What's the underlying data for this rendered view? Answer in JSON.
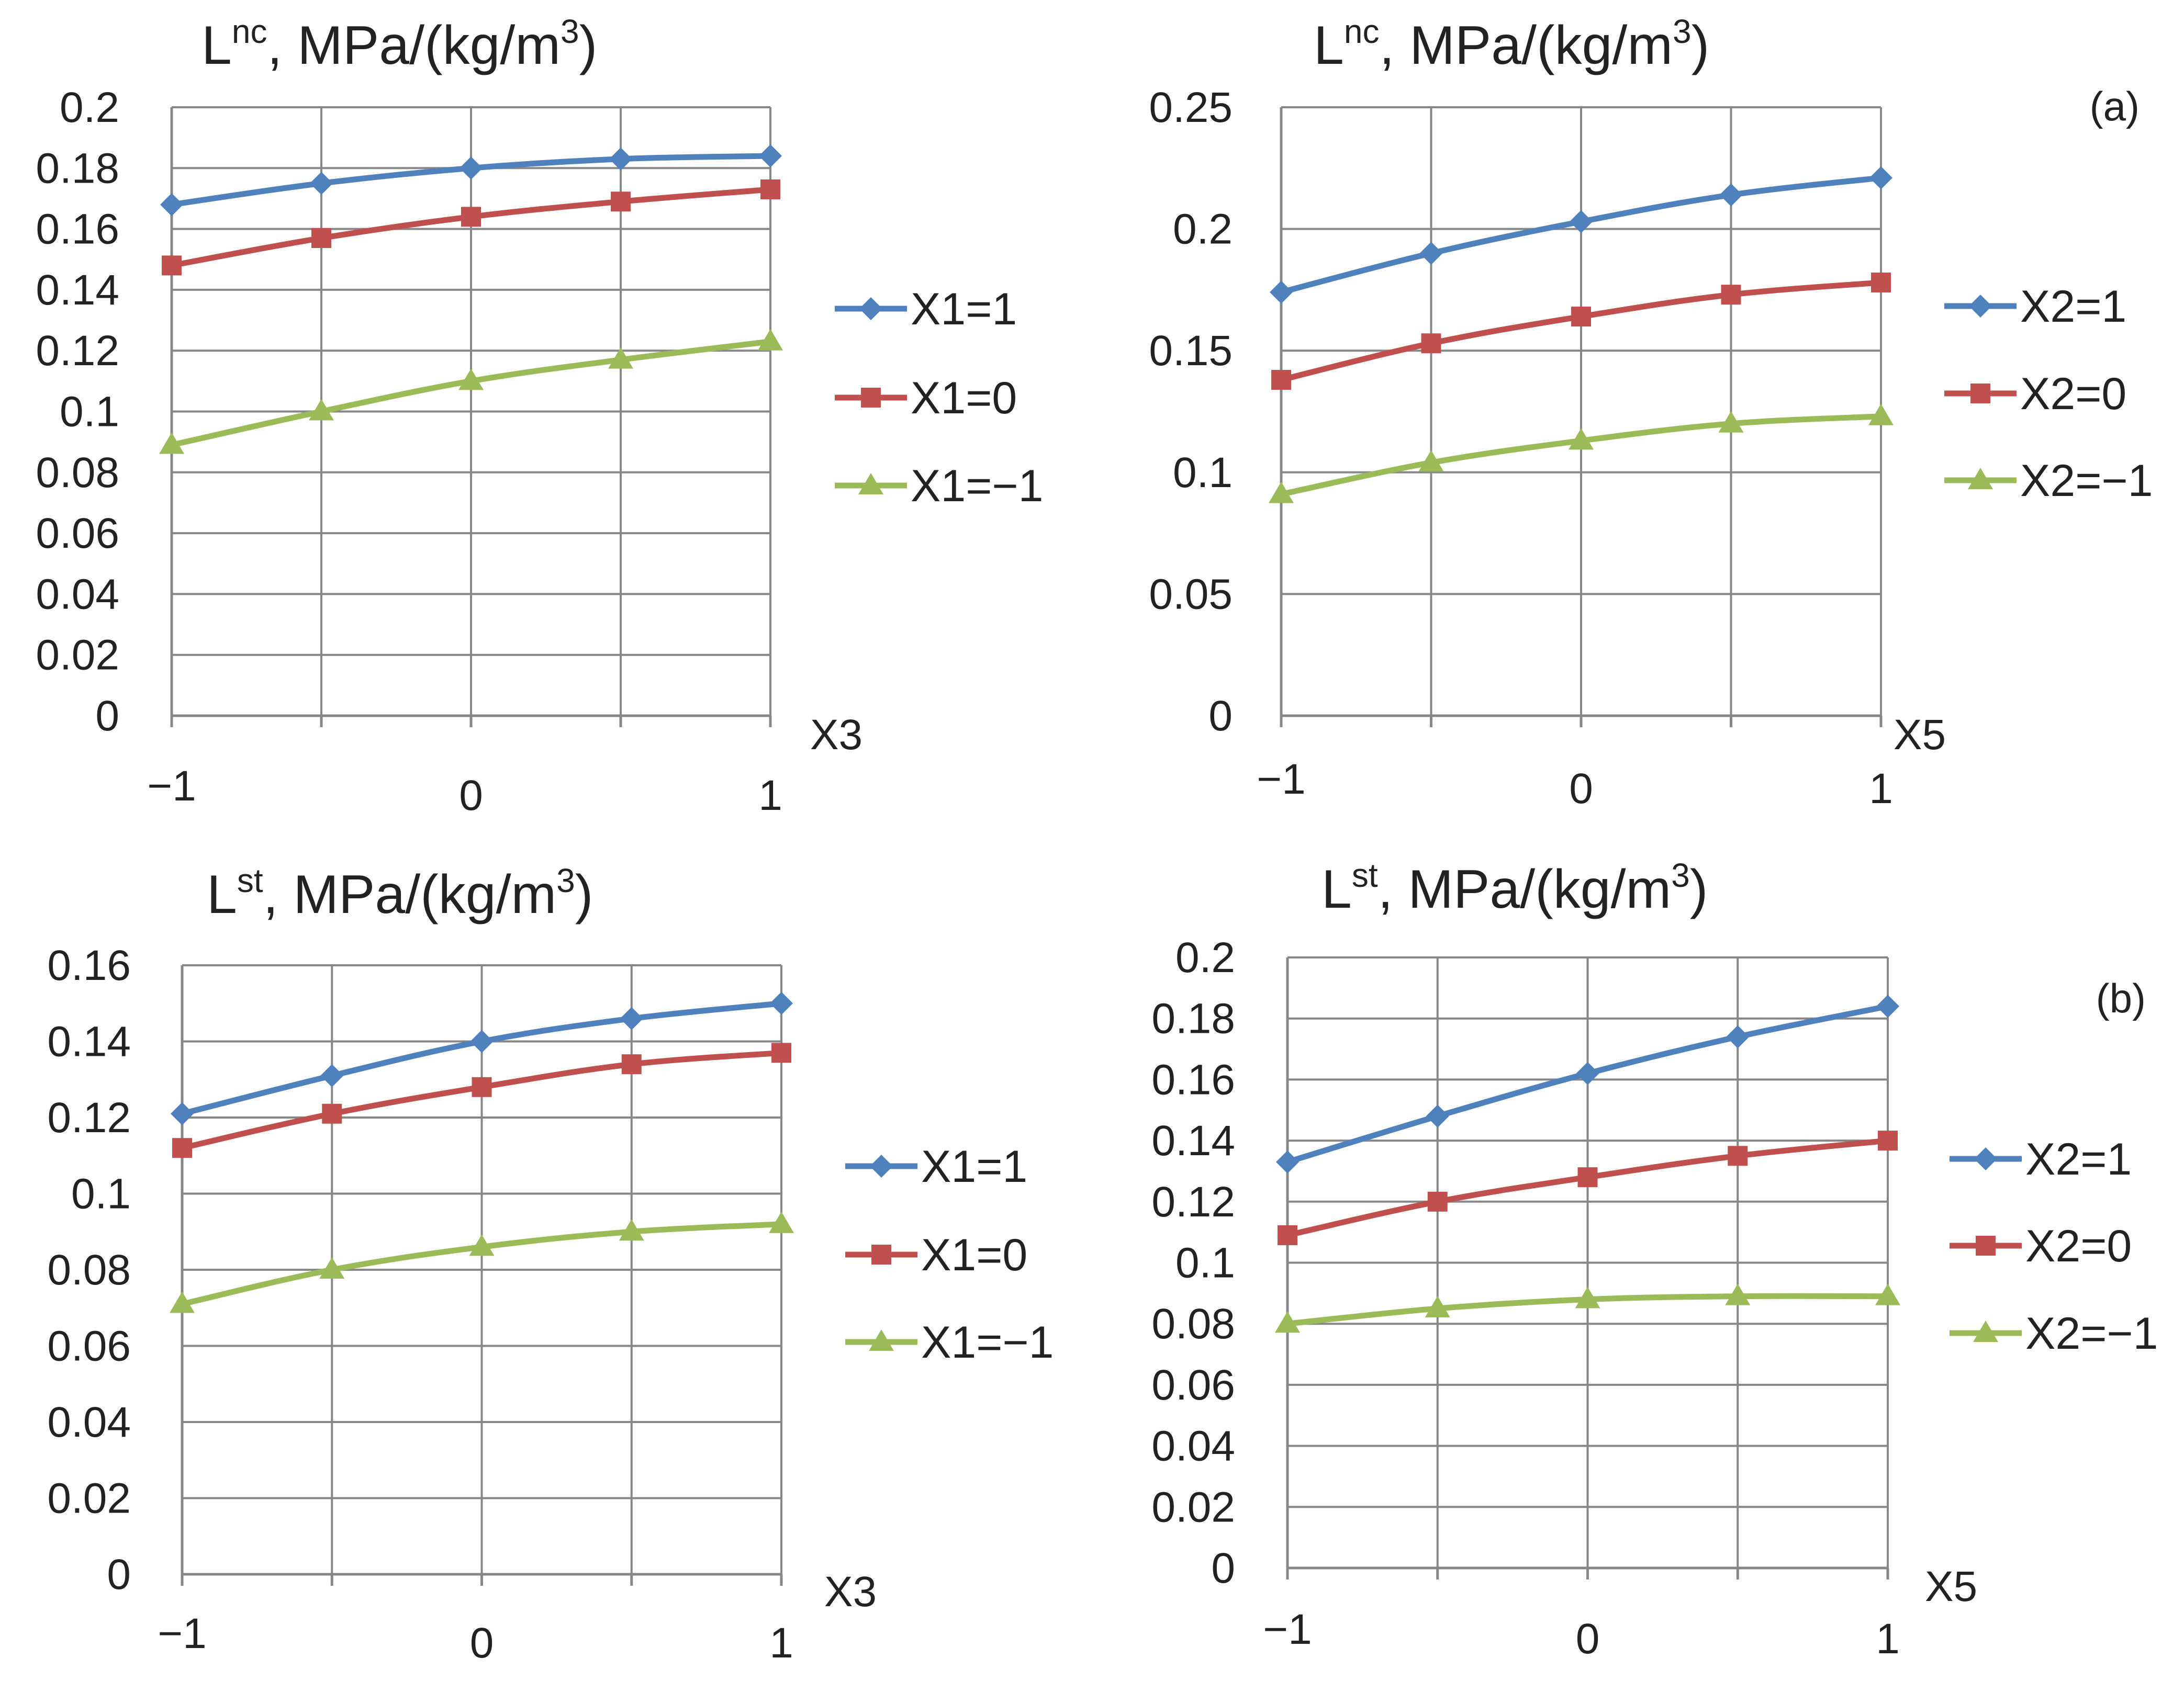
{
  "colors": {
    "series1": "#4f81bd",
    "series2": "#c0504d",
    "series3": "#9bbb59",
    "grid": "#878787",
    "text": "#222222"
  },
  "chart_data": [
    {
      "type": "line",
      "title": {
        "base": "L",
        "sup": "nc",
        "unit": ", MPa/(kg/m",
        "unit_sup": "3",
        "close": ")"
      },
      "xlabel": "X3",
      "x": [
        -1,
        -0.5,
        0,
        0.5,
        1
      ],
      "x_tick_labels": [
        "−1",
        "0",
        "1"
      ],
      "ylim": [
        0,
        0.2
      ],
      "y_ticks": [
        "0",
        "0.02",
        "0.04",
        "0.06",
        "0.08",
        "0.1",
        "0.12",
        "0.14",
        "0.16",
        "0.18",
        "0.2"
      ],
      "legend_position": "right",
      "panel_label": "",
      "series": [
        {
          "name": "X1=1",
          "marker": "diamond",
          "values": [
            0.168,
            0.175,
            0.18,
            0.183,
            0.184
          ]
        },
        {
          "name": "X1=0",
          "marker": "square",
          "values": [
            0.148,
            0.157,
            0.164,
            0.169,
            0.173
          ]
        },
        {
          "name": "X1=−1",
          "marker": "triangle",
          "values": [
            0.089,
            0.1,
            0.11,
            0.117,
            0.123
          ]
        }
      ]
    },
    {
      "type": "line",
      "title": {
        "base": "L",
        "sup": "nc",
        "unit": ", MPa/(kg/m",
        "unit_sup": "3",
        "close": ")"
      },
      "xlabel": "X5",
      "x": [
        -1,
        -0.5,
        0,
        0.5,
        1
      ],
      "x_tick_labels": [
        "−1",
        "0",
        "1"
      ],
      "ylim": [
        0,
        0.25
      ],
      "y_ticks": [
        "0",
        "0.05",
        "0.1",
        "0.15",
        "0.2",
        "0.25"
      ],
      "legend_position": "right",
      "panel_label": "(a)",
      "series": [
        {
          "name": "X2=1",
          "marker": "diamond",
          "values": [
            0.174,
            0.19,
            0.203,
            0.214,
            0.221
          ]
        },
        {
          "name": "X2=0",
          "marker": "square",
          "values": [
            0.138,
            0.153,
            0.164,
            0.173,
            0.178
          ]
        },
        {
          "name": "X2=−1",
          "marker": "triangle",
          "values": [
            0.091,
            0.104,
            0.113,
            0.12,
            0.123
          ]
        }
      ]
    },
    {
      "type": "line",
      "title": {
        "base": "L",
        "sup": "st",
        "unit": ", MPa/(kg/m",
        "unit_sup": "3",
        "close": ")"
      },
      "xlabel": "X3",
      "x": [
        -1,
        -0.5,
        0,
        0.5,
        1
      ],
      "x_tick_labels": [
        "−1",
        "0",
        "1"
      ],
      "ylim": [
        0,
        0.16
      ],
      "y_ticks": [
        "0",
        "0.02",
        "0.04",
        "0.06",
        "0.08",
        "0.1",
        "0.12",
        "0.14",
        "0.16"
      ],
      "legend_position": "right",
      "panel_label": "",
      "series": [
        {
          "name": "X1=1",
          "marker": "diamond",
          "values": [
            0.121,
            0.131,
            0.14,
            0.146,
            0.15
          ]
        },
        {
          "name": "X1=0",
          "marker": "square",
          "values": [
            0.112,
            0.121,
            0.128,
            0.134,
            0.137
          ]
        },
        {
          "name": "X1=−1",
          "marker": "triangle",
          "values": [
            0.071,
            0.08,
            0.086,
            0.09,
            0.092
          ]
        }
      ]
    },
    {
      "type": "line",
      "title": {
        "base": "L",
        "sup": "st",
        "unit": ", MPa/(kg/m",
        "unit_sup": "3",
        "close": ")"
      },
      "xlabel": "X5",
      "x": [
        -1,
        -0.5,
        0,
        0.5,
        1
      ],
      "x_tick_labels": [
        "−1",
        "0",
        "1"
      ],
      "ylim": [
        0,
        0.2
      ],
      "y_ticks": [
        "0",
        "0.02",
        "0.04",
        "0.06",
        "0.08",
        "0.1",
        "0.12",
        "0.14",
        "0.16",
        "0.18",
        "0.2"
      ],
      "legend_position": "right",
      "panel_label": "(b)",
      "series": [
        {
          "name": "X2=1",
          "marker": "diamond",
          "values": [
            0.133,
            0.148,
            0.162,
            0.174,
            0.184
          ]
        },
        {
          "name": "X2=0",
          "marker": "square",
          "values": [
            0.109,
            0.12,
            0.128,
            0.135,
            0.14
          ]
        },
        {
          "name": "X2=−1",
          "marker": "triangle",
          "values": [
            0.08,
            0.085,
            0.088,
            0.089,
            0.089
          ]
        }
      ]
    }
  ]
}
